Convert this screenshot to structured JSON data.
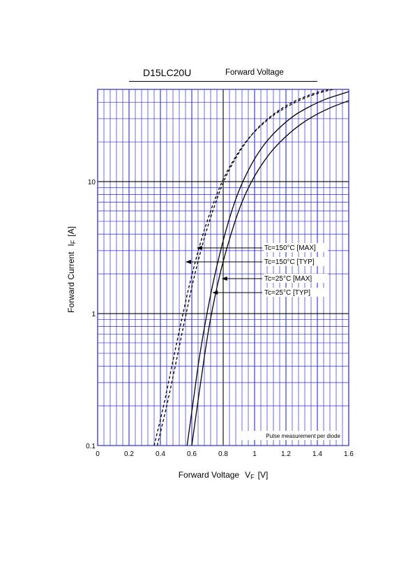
{
  "header": {
    "part_number": "D15LC20U",
    "subtitle": "Forward Voltage"
  },
  "chart_data": {
    "type": "line",
    "title": "D15LC20U Forward Voltage",
    "xlabel": "Forward Voltage",
    "xlabel_symbol": "V",
    "xlabel_subscript": "F",
    "xlabel_unit": "[V]",
    "ylabel": "Forward Current",
    "ylabel_symbol": "I",
    "ylabel_subscript": "F",
    "ylabel_unit": "[A]",
    "xlim": [
      0,
      1.6
    ],
    "ylim": [
      0.1,
      50
    ],
    "yscale": "log",
    "grid": true,
    "x_tick_labels": [
      "0",
      "0.2",
      "0.4",
      "0.6",
      "0.8",
      "1",
      "1.2",
      "1.4",
      "1.6"
    ],
    "y_tick_labels": [
      "0.1",
      "1",
      "10"
    ],
    "y_tick_values": [
      0.1,
      1,
      10
    ],
    "note": "Pulse measurement per diode",
    "colors": {
      "grid": "#2b2bd4",
      "grid_major": "#000000",
      "curve": "#000000"
    },
    "series": [
      {
        "name": "Tc=150°C [MAX]",
        "style": "dashed",
        "x": [
          0.38,
          0.44,
          0.5,
          0.56,
          0.62,
          0.7,
          0.8,
          0.9,
          1.0,
          1.1,
          1.2,
          1.3,
          1.4,
          1.5
        ],
        "y": [
          0.1,
          0.2,
          0.43,
          0.95,
          2.0,
          4.5,
          9.8,
          16.5,
          24,
          31,
          37.5,
          43,
          47.5,
          51
        ]
      },
      {
        "name": "Tc=150°C [TYP]",
        "style": "dashed",
        "x": [
          0.36,
          0.42,
          0.48,
          0.54,
          0.6,
          0.68,
          0.78,
          0.88,
          0.98,
          1.1,
          1.2,
          1.3,
          1.4,
          1.5,
          1.6
        ],
        "y": [
          0.1,
          0.2,
          0.44,
          0.95,
          1.95,
          4.3,
          9.2,
          15.5,
          22.5,
          30.5,
          36.5,
          42,
          46.5,
          50,
          53
        ]
      },
      {
        "name": "Tc=25°C [MAX]",
        "style": "solid",
        "x": [
          0.6,
          0.64,
          0.68,
          0.72,
          0.78,
          0.85,
          0.92,
          1.0,
          1.1,
          1.2,
          1.3,
          1.4,
          1.5,
          1.6
        ],
        "y": [
          0.1,
          0.22,
          0.47,
          0.92,
          2.0,
          4.0,
          7.0,
          11.0,
          16.5,
          22,
          27.5,
          32.5,
          37,
          41
        ]
      },
      {
        "name": "Tc=25°C [TYP]",
        "style": "solid",
        "x": [
          0.57,
          0.61,
          0.65,
          0.7,
          0.76,
          0.83,
          0.9,
          0.98,
          1.06,
          1.15,
          1.25,
          1.35,
          1.45,
          1.55,
          1.6
        ],
        "y": [
          0.1,
          0.22,
          0.48,
          1.05,
          2.3,
          4.8,
          8.5,
          13.5,
          19,
          25,
          31.5,
          37,
          42,
          46,
          48
        ]
      }
    ],
    "annotations": [
      {
        "label": "Tc=150°C [MAX]",
        "arrow_x": 0.63,
        "arrow_y": 2.9
      },
      {
        "label": "Tc=150°C [TYP]",
        "arrow_x": 0.56,
        "arrow_y": 2.3
      },
      {
        "label": "Tc=25°C [MAX]",
        "arrow_x": 0.79,
        "arrow_y": 1.7
      },
      {
        "label": "Tc=25°C [TYP]",
        "arrow_x": 0.73,
        "arrow_y": 1.35
      }
    ]
  }
}
